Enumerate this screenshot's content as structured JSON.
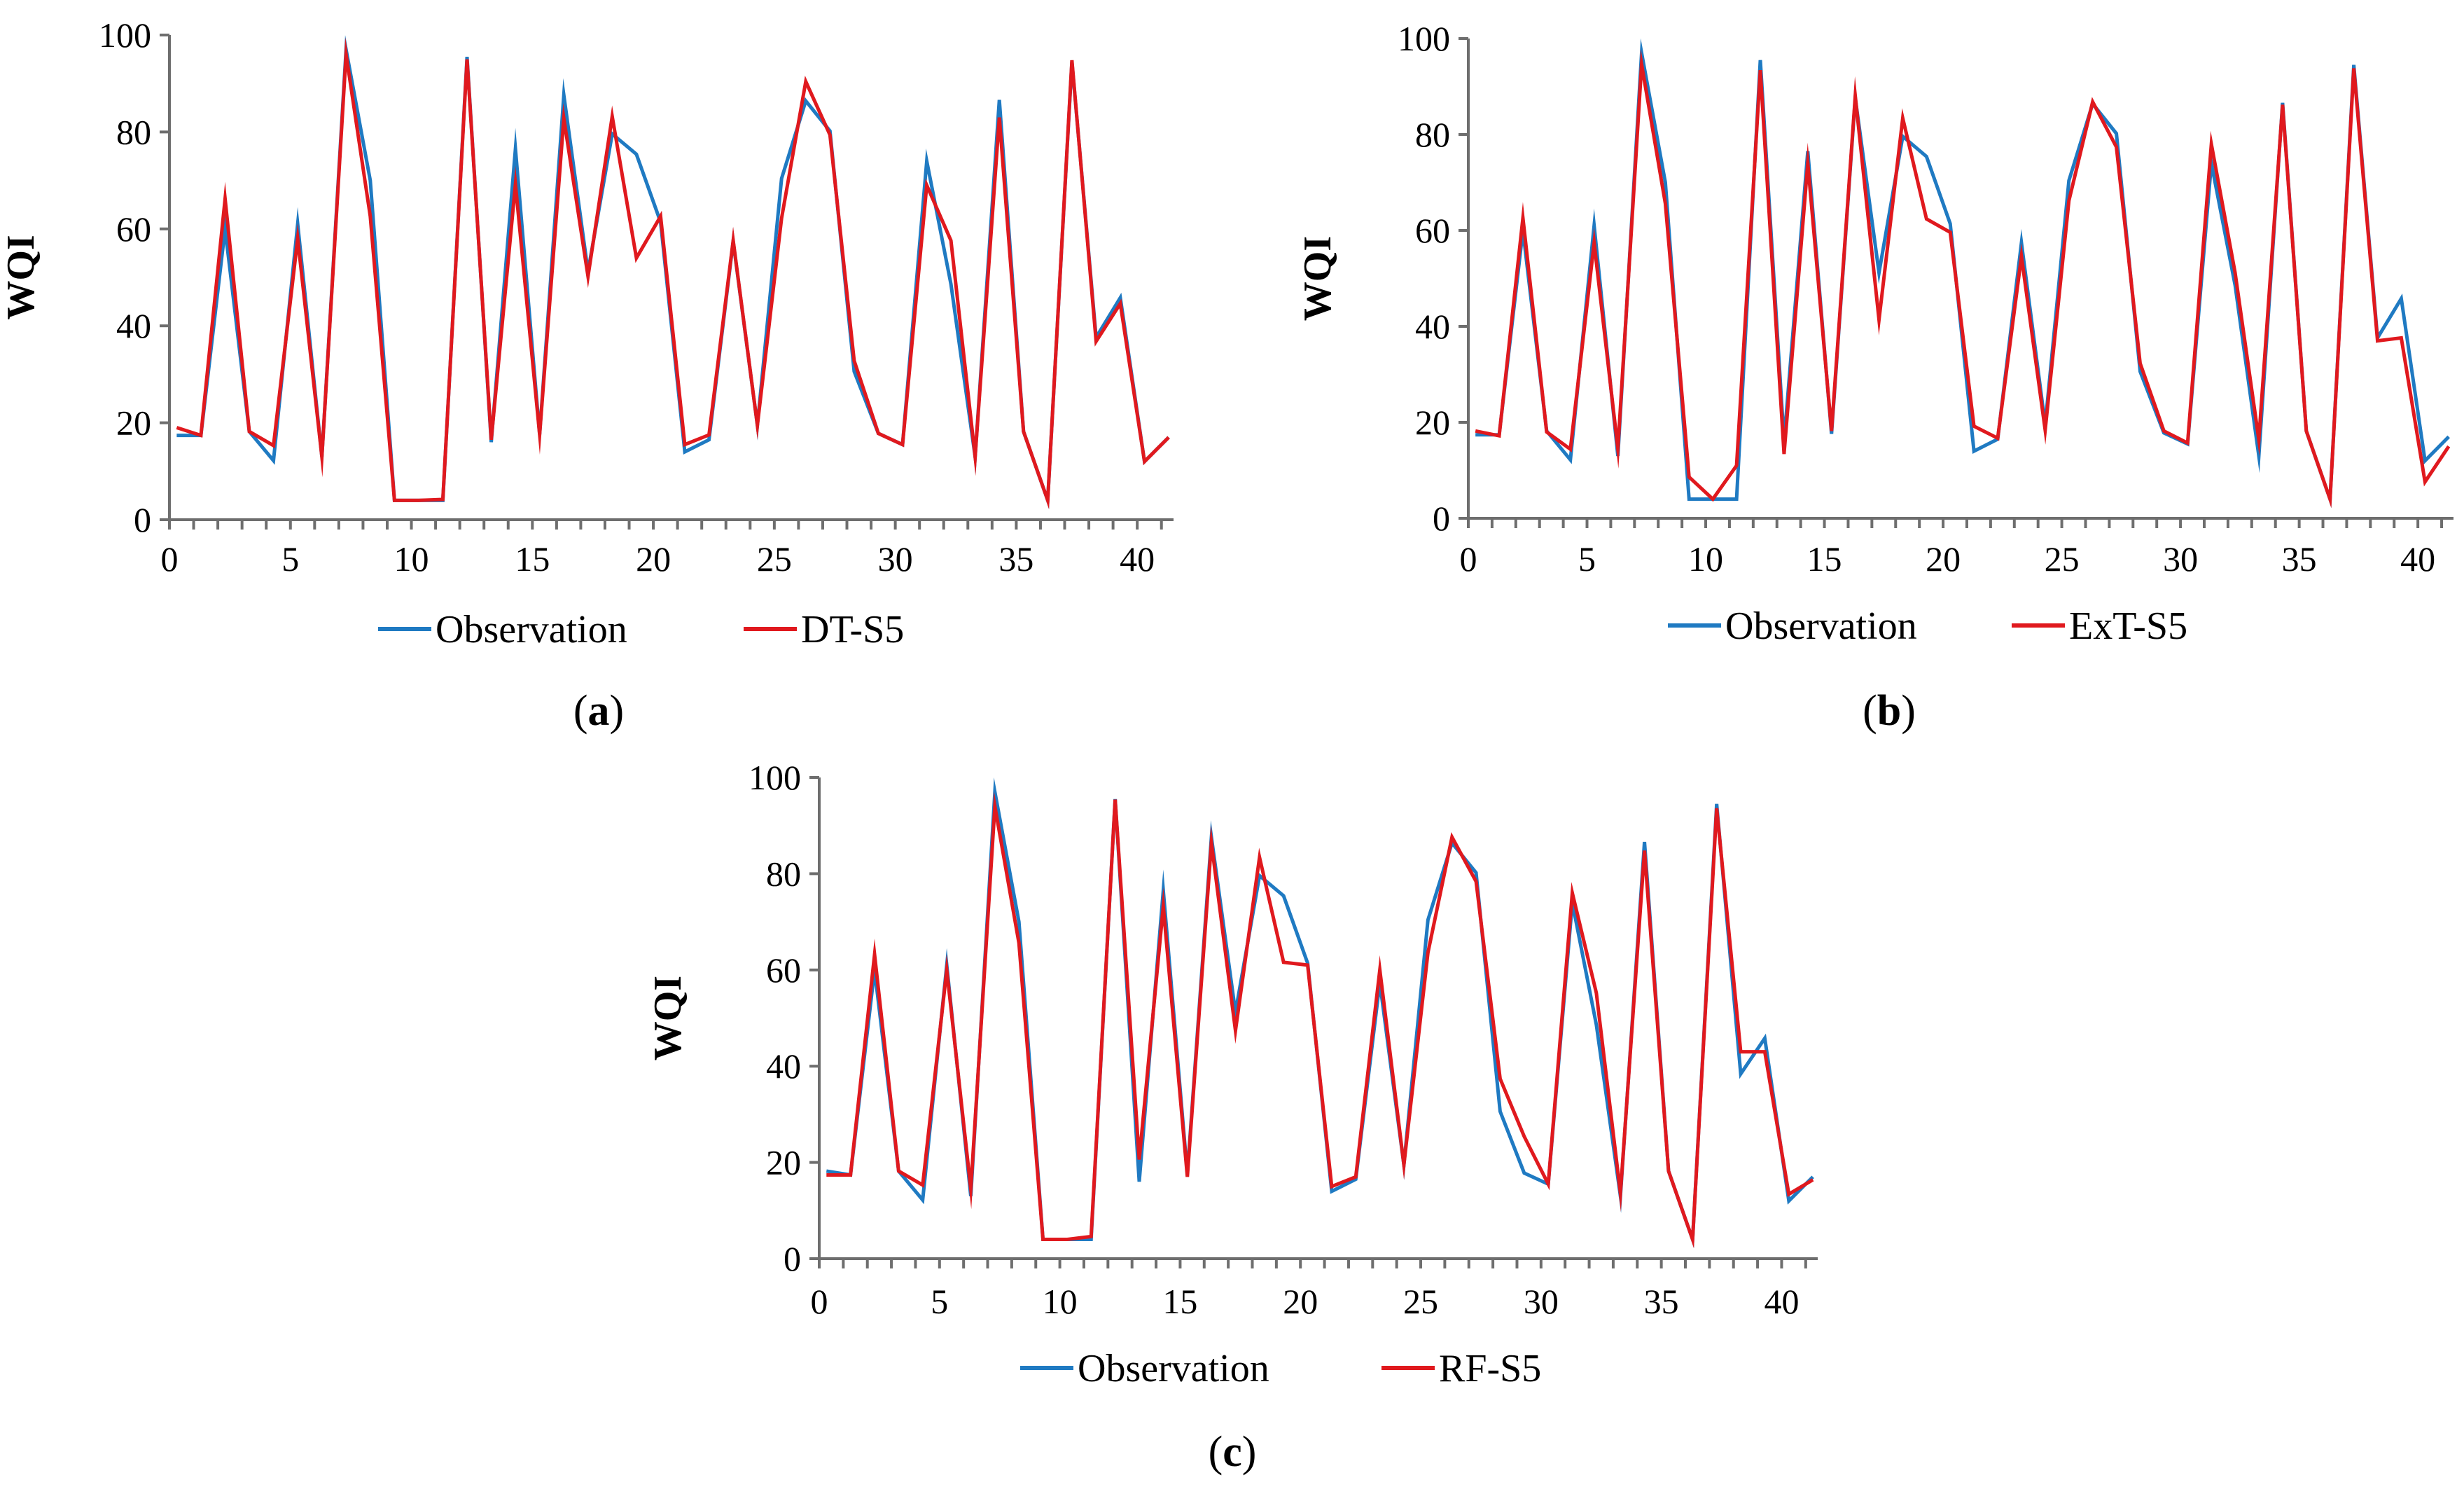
{
  "figure": {
    "colors": {
      "observation": "#1f7ac2",
      "prediction": "#e0191e",
      "axis": "#6e6e6e"
    }
  },
  "chart_data": [
    {
      "id": "a",
      "type": "line",
      "caption_letter": "a",
      "ylabel": "WQI",
      "xlabel": "",
      "ylim": [
        0,
        100
      ],
      "xlim": [
        0,
        41.5
      ],
      "yticks": [
        "0",
        "20",
        "40",
        "60",
        "80",
        "100"
      ],
      "xticks": [
        "0",
        "5",
        "10",
        "15",
        "20",
        "25",
        "30",
        "35",
        "40"
      ],
      "legend_position": "bottom",
      "series": [
        {
          "name": "Observation",
          "color": "#1f7ac2",
          "values": [
            17.4,
            17.4,
            60,
            18.2,
            12.2,
            61,
            13,
            97,
            70,
            4,
            4,
            4,
            95.5,
            16,
            76.5,
            17.6,
            87.6,
            51.2,
            79.6,
            75.4,
            61.4,
            14,
            16.5,
            57.4,
            19.5,
            70.4,
            86.4,
            80.2,
            30.6,
            17.8,
            15.5,
            74,
            48.6,
            13,
            86.6,
            18.2,
            4,
            94.5,
            37.6,
            45.8,
            12,
            17
          ]
        },
        {
          "name": "DT-S5",
          "color": "#e0191e",
          "values": [
            19,
            17.4,
            66.2,
            18.2,
            15.3,
            58,
            13,
            96,
            62.6,
            4,
            4,
            4.2,
            95,
            16.5,
            69.2,
            17.6,
            82.8,
            50.2,
            83.2,
            54,
            62.6,
            15.5,
            17.5,
            57.6,
            19.5,
            62.2,
            90.4,
            79.4,
            32.8,
            17.8,
            15.5,
            69,
            57.6,
            13,
            83,
            18.2,
            4,
            94.8,
            36.8,
            44.6,
            12,
            17
          ]
        }
      ]
    },
    {
      "id": "b",
      "type": "line",
      "caption_letter": "b",
      "ylabel": "WQI",
      "xlabel": "",
      "ylim": [
        0,
        100
      ],
      "xlim": [
        0,
        41.5
      ],
      "yticks": [
        "0",
        "20",
        "40",
        "60",
        "80",
        "100"
      ],
      "xticks": [
        "0",
        "5",
        "10",
        "15",
        "20",
        "25",
        "30",
        "35",
        "40"
      ],
      "legend_position": "bottom",
      "series": [
        {
          "name": "Observation",
          "color": "#1f7ac2",
          "values": [
            17.4,
            17.4,
            60,
            18.2,
            12.2,
            61,
            13,
            97,
            70,
            4,
            4,
            4,
            95.5,
            16,
            76.5,
            17.6,
            87.6,
            51.2,
            79.6,
            75.4,
            61.4,
            14,
            16.5,
            57.4,
            19.5,
            70.4,
            86.4,
            80.2,
            30.6,
            17.8,
            15.5,
            74,
            48.6,
            13,
            86.6,
            18.2,
            4,
            94.5,
            37.6,
            45.8,
            12,
            17
          ]
        },
        {
          "name": "ExT-S5",
          "color": "#e0191e",
          "values": [
            18.2,
            17.2,
            62.6,
            18,
            14.4,
            57.4,
            14.5,
            94.6,
            65.6,
            8.6,
            4,
            11,
            93.4,
            13.4,
            74,
            18.2,
            88,
            41.4,
            83.4,
            62.4,
            59.6,
            19.2,
            16.7,
            54.6,
            18.4,
            66.2,
            86.8,
            77.4,
            32.3,
            18.2,
            15.7,
            78,
            51.2,
            16.4,
            86.2,
            18.2,
            4,
            93.8,
            37,
            37.6,
            7.6,
            15
          ]
        }
      ]
    },
    {
      "id": "c",
      "type": "line",
      "caption_letter": "c",
      "ylabel": "WQI",
      "xlabel": "",
      "ylim": [
        0,
        100
      ],
      "xlim": [
        0,
        41.5
      ],
      "yticks": [
        "0",
        "20",
        "40",
        "60",
        "80",
        "100"
      ],
      "xticks": [
        "0",
        "5",
        "10",
        "15",
        "20",
        "25",
        "30",
        "35",
        "40"
      ],
      "legend_position": "bottom",
      "series": [
        {
          "name": "Observation",
          "color": "#1f7ac2",
          "values": [
            18.2,
            17.4,
            60,
            18.2,
            12.2,
            61,
            13,
            97,
            70,
            4,
            4,
            4,
            95.5,
            16,
            76.5,
            17.6,
            87.6,
            51.2,
            79.6,
            75.4,
            61.4,
            14,
            16.5,
            57.4,
            19.5,
            70.4,
            86.4,
            80.2,
            30.6,
            17.8,
            15.5,
            74,
            48.6,
            13,
            86.6,
            18.2,
            4,
            94.5,
            38.4,
            45.8,
            12,
            17
          ]
        },
        {
          "name": "RF-S5",
          "color": "#e0191e",
          "values": [
            17.4,
            17.4,
            63.2,
            18.2,
            15.3,
            60,
            14.5,
            94,
            65.6,
            4,
            4,
            4.6,
            95.4,
            20.6,
            73.2,
            17,
            86.4,
            47.4,
            83.4,
            61.6,
            61,
            15,
            17,
            60,
            19.5,
            63.6,
            87.6,
            78.4,
            37.4,
            25.4,
            15.5,
            76,
            55.2,
            13.6,
            84.8,
            18.2,
            4,
            93.6,
            43,
            43,
            13.4,
            16.4
          ]
        }
      ]
    }
  ]
}
